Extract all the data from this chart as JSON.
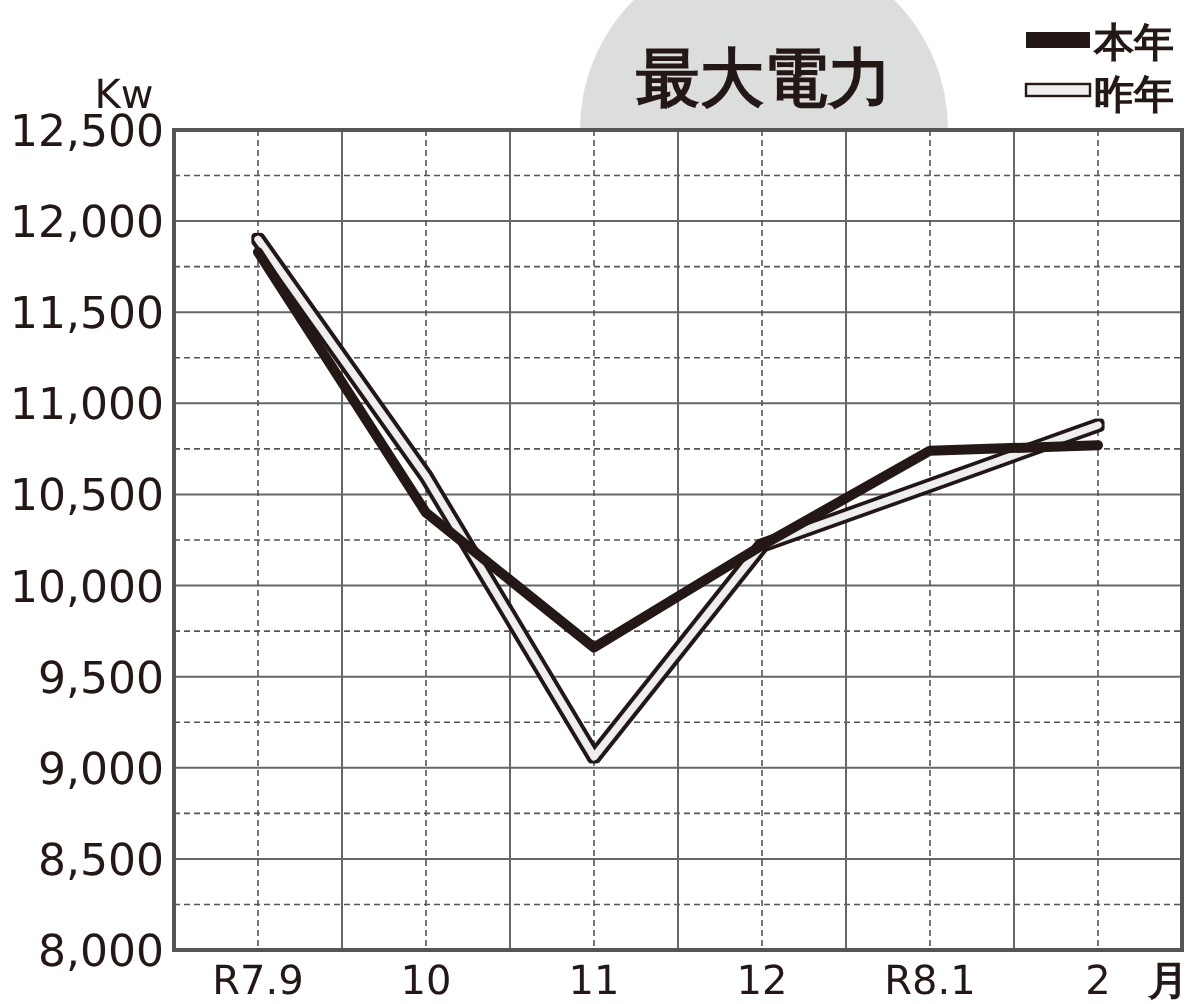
{
  "chart_data": {
    "type": "line",
    "title": "最大電力",
    "ylabel": "Kw",
    "xlabel": "月",
    "categories": [
      "R7.9",
      "10",
      "11",
      "12",
      "R8.1",
      "2"
    ],
    "series": [
      {
        "name": "本年",
        "color": "#231815",
        "values": [
          11830,
          10400,
          9660,
          10220,
          10740,
          10770
        ]
      },
      {
        "name": "昨年",
        "color": "#eeeeee",
        "values": [
          11900,
          10600,
          9060,
          10220,
          10550,
          10880
        ]
      }
    ],
    "ylim": [
      8000,
      12500
    ],
    "yticks": [
      {
        "value": 8000,
        "label": "8,000"
      },
      {
        "value": 8500,
        "label": "8,500"
      },
      {
        "value": 9000,
        "label": "9,000"
      },
      {
        "value": 9500,
        "label": "9,500"
      },
      {
        "value": 10000,
        "label": "10,000"
      },
      {
        "value": 10500,
        "label": "10,500"
      },
      {
        "value": 11000,
        "label": "11,000"
      },
      {
        "value": 11500,
        "label": "11,500"
      },
      {
        "value": 12000,
        "label": "12,000"
      },
      {
        "value": 12500,
        "label": "12,500"
      }
    ],
    "grid": true,
    "legend": "top right",
    "marker": "none",
    "line_style": "solid"
  }
}
